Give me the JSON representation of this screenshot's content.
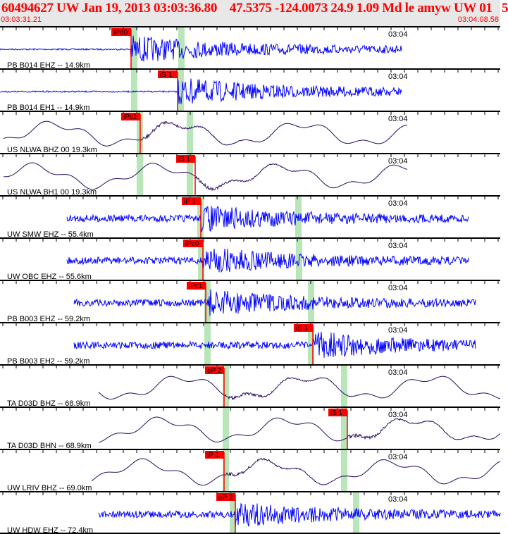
{
  "header": {
    "title": "60494627 UW Jan 19, 2013 03:03:36.80    47.5375 -124.0073 24.9 1.09 Md le amyw UW 01   5",
    "start_time": "03:03:31.21",
    "end_time": "03:04:08.58"
  },
  "colors": {
    "short_period": "#0000ff",
    "broadband": "#2a0a5e",
    "pick": "#ff0000",
    "window": "#b8e6b8"
  },
  "traces": [
    {
      "label": "PB B014 EHZ -- 14.9km",
      "pick": "iPd0",
      "time_label": "03:04"
    },
    {
      "label": "PB B014 EH1 -- 14.9km",
      "pick": "iS 1",
      "time_label": "03:04"
    },
    {
      "label": "US NLWA BHZ 00 19.3km",
      "pick": "iPc1",
      "time_label": "03:04"
    },
    {
      "label": "US NLWA BH1 00 19.3km",
      "pick": "iS 1",
      "time_label": "03:04"
    },
    {
      "label": "UW SMW EHZ -- 55.4km",
      "pick": "iP 1",
      "time_label": "03:04"
    },
    {
      "label": "UW OBC EHZ -- 55.6km",
      "pick": "iPc0",
      "time_label": "03:04"
    },
    {
      "label": "PB B003 EHZ -- 59.2km",
      "pick": "iPc1",
      "time_label": "03:04"
    },
    {
      "label": "PB B003 EH2 -- 59.2km",
      "pick": "iS 1",
      "time_label": "03:04"
    },
    {
      "label": "TA D03D BHZ -- 68.9km",
      "pick": "eP 2",
      "time_label": "03:04"
    },
    {
      "label": "TA D03D BHN -- 68.9km",
      "pick": "iS 1",
      "time_label": "03:04"
    },
    {
      "label": "UW LRIV BHZ -- 69.0km",
      "pick": "iP 1",
      "time_label": "03:04"
    },
    {
      "label": "UW HDW EHZ -- 72.4km",
      "pick": "eP 2",
      "time_label": "03:04"
    }
  ]
}
